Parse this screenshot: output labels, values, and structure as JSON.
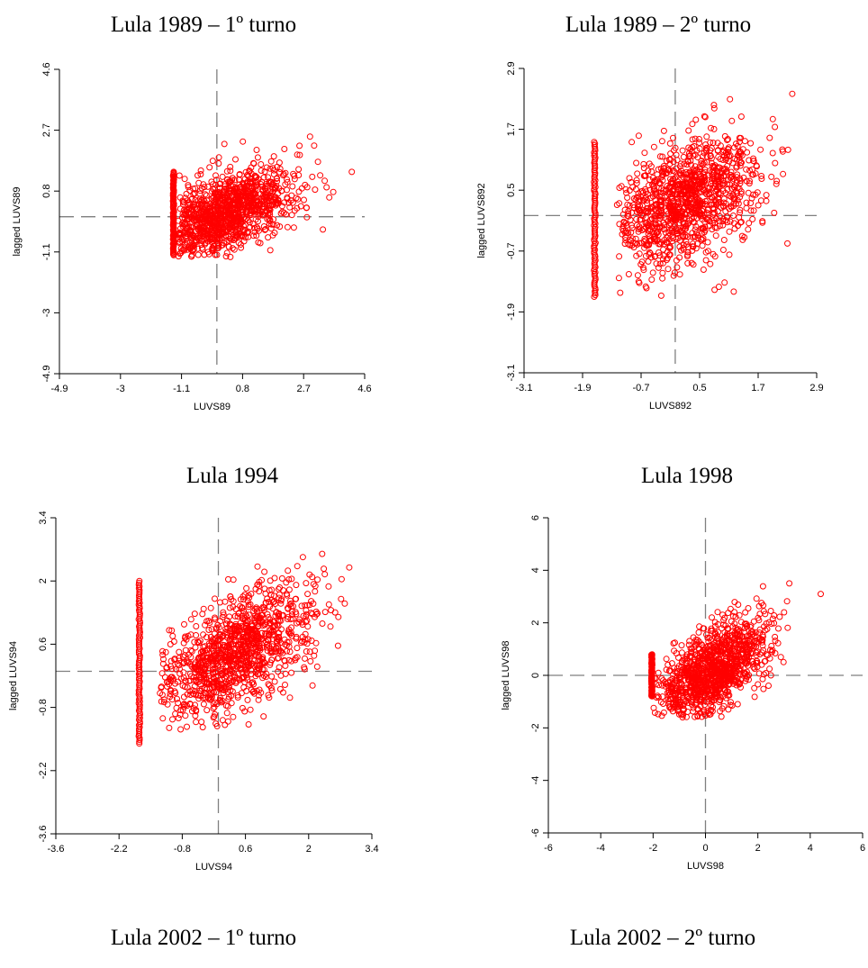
{
  "titles": {
    "t1": "Lula 1989 – 1º turno",
    "t2": "Lula 1989 – 2º turno",
    "t3": "Lula 1994",
    "t4": "Lula 1998",
    "t5": "Lula 2002 – 1º turno",
    "t6": "Lula 2002 – 2º turno"
  },
  "colors": {
    "points": "#ff0000",
    "axes": "#000000",
    "refline": "#7f7f7f"
  },
  "chart_data": [
    {
      "type": "scatter",
      "title": "Lula 1989 – 1º turno",
      "xlabel": "LUVS89",
      "ylabel": "lagged LUVS89",
      "xlim": [
        -4.9,
        4.6
      ],
      "ylim": [
        -4.9,
        4.6
      ],
      "xticks": [
        "-4.9",
        "-3",
        "-1.1",
        "0.8",
        "2.7",
        "4.6"
      ],
      "yticks": [
        "-4.9",
        "-3",
        "-1.1",
        "0.8",
        "2.7",
        "4.6"
      ],
      "reference_lines": {
        "x": 0,
        "y": 0
      },
      "column_cluster": {
        "x": -1.35,
        "y_range": [
          -1.2,
          1.4
        ]
      },
      "cloud": {
        "x_range": [
          -1.2,
          4.2
        ],
        "y_range": [
          -1.3,
          2.6
        ],
        "center": [
          0.2,
          0.1
        ],
        "slope": 0.35
      },
      "sample_points": [
        [
          4.2,
          1.4
        ],
        [
          3.3,
          -0.4
        ],
        [
          2.9,
          2.5
        ],
        [
          3.5,
          0.6
        ]
      ]
    },
    {
      "type": "scatter",
      "title": "Lula 1989 – 2º turno",
      "xlabel": "LUVS892",
      "ylabel": "lagged LUVS892",
      "xlim": [
        -3.1,
        2.9
      ],
      "ylim": [
        -3.1,
        2.9
      ],
      "xticks": [
        "-3.1",
        "-1.9",
        "-0.7",
        "0.5",
        "1.7",
        "2.9"
      ],
      "yticks": [
        "-3.1",
        "-1.9",
        "-0.7",
        "0.5",
        "1.7",
        "2.9"
      ],
      "reference_lines": {
        "x": 0,
        "y": 0
      },
      "column_cluster": {
        "x": -1.65,
        "y_range": [
          -1.6,
          1.45
        ]
      },
      "cloud": {
        "x_range": [
          -1.2,
          2.5
        ],
        "y_range": [
          -1.6,
          2.3
        ],
        "center": [
          0.2,
          0.25
        ],
        "slope": 0.45
      },
      "sample_points": [
        [
          2.4,
          2.4
        ],
        [
          2.3,
          -0.55
        ],
        [
          2.0,
          1.9
        ],
        [
          1.2,
          -1.5
        ]
      ]
    },
    {
      "type": "scatter",
      "title": "Lula 1994",
      "xlabel": "LUVS94",
      "ylabel": "lagged LUVS94",
      "xlim": [
        -3.6,
        3.4
      ],
      "ylim": [
        -3.6,
        3.4
      ],
      "xticks": [
        "-3.6",
        "-2.2",
        "-0.8",
        "0.6",
        "2",
        "3.4"
      ],
      "yticks": [
        "-3.6",
        "-2.2",
        "-0.8",
        "0.6",
        "2",
        "3.4"
      ],
      "reference_lines": {
        "x": 0,
        "y": 0
      },
      "column_cluster": {
        "x": -1.75,
        "y_range": [
          -1.6,
          2.0
        ]
      },
      "cloud": {
        "x_range": [
          -1.4,
          3.0
        ],
        "y_range": [
          -1.3,
          2.6
        ],
        "center": [
          0.4,
          0.4
        ],
        "slope": 0.5
      },
      "sample_points": [
        [
          2.3,
          2.6
        ],
        [
          2.9,
          2.3
        ],
        [
          1.0,
          -1.0
        ],
        [
          2.8,
          1.5
        ]
      ]
    },
    {
      "type": "scatter",
      "title": "Lula 1998",
      "xlabel": "LUVS98",
      "ylabel": "lagged LUVS98",
      "xlim": [
        -6,
        6
      ],
      "ylim": [
        -6,
        6
      ],
      "xticks": [
        "-6",
        "-4",
        "-2",
        "0",
        "2",
        "4",
        "6"
      ],
      "yticks": [
        "-6",
        "-4",
        "-2",
        "0",
        "2",
        "4",
        "6"
      ],
      "reference_lines": {
        "x": 0,
        "y": 0
      },
      "column_cluster": {
        "x": -2.05,
        "y_range": [
          -0.8,
          0.8
        ]
      },
      "cloud": {
        "x_range": [
          -2.0,
          3.5
        ],
        "y_range": [
          -1.6,
          3.5
        ],
        "center": [
          0.2,
          0.1
        ],
        "slope": 0.55
      },
      "sample_points": [
        [
          4.4,
          3.1
        ],
        [
          3.2,
          3.5
        ],
        [
          3.0,
          2.4
        ],
        [
          2.5,
          0.0
        ]
      ]
    }
  ]
}
